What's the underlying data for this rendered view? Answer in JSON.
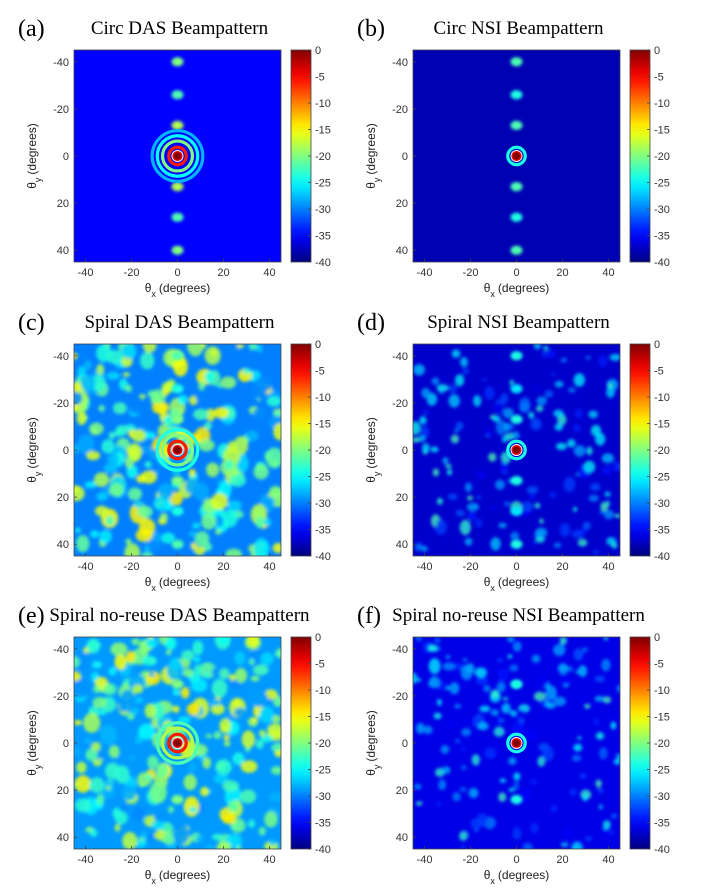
{
  "chart_data": [
    {
      "type": "heatmap",
      "panel": "(a)",
      "title": "Circ DAS Beampattern",
      "array": "circ",
      "method": "DAS",
      "xlabel": {
        "symbol": "θ",
        "sub": "x",
        "unit": "(degrees)"
      },
      "ylabel": {
        "symbol": "θ",
        "sub": "y",
        "unit": "(degrees)"
      },
      "xlim": [
        -45,
        45
      ],
      "ylim": [
        -45,
        45
      ],
      "xticks": [
        -40,
        -20,
        0,
        20,
        40
      ],
      "yticks": [
        -40,
        -20,
        0,
        20,
        40
      ],
      "colorbar": {
        "range": [
          -40,
          0
        ],
        "ticks": [
          0,
          -5,
          -10,
          -15,
          -20,
          -25,
          -30,
          -35,
          -40
        ],
        "colormap": "jet"
      },
      "background_level": -35,
      "mainlobe": {
        "x": 0,
        "y": 0,
        "level": 0
      },
      "rings": [
        {
          "radius": 3.8,
          "level": -6
        },
        {
          "radius": 6.5,
          "level": -20
        },
        {
          "radius": 8.8,
          "level": -25
        },
        {
          "radius": 11,
          "level": -28
        }
      ],
      "grating_lobes": [
        {
          "x": 0,
          "y": -40,
          "level": -20
        },
        {
          "x": 0,
          "y": -26,
          "level": -22
        },
        {
          "x": 0,
          "y": -13,
          "level": -18
        },
        {
          "x": 0,
          "y": 13,
          "level": -18
        },
        {
          "x": 0,
          "y": 26,
          "level": -22
        },
        {
          "x": 0,
          "y": 40,
          "level": -20
        }
      ],
      "clutter": "low"
    },
    {
      "type": "heatmap",
      "panel": "(b)",
      "title": "Circ NSI Beampattern",
      "array": "circ",
      "method": "NSI",
      "xlabel": {
        "symbol": "θ",
        "sub": "x",
        "unit": "(degrees)"
      },
      "ylabel": {
        "symbol": "θ",
        "sub": "y",
        "unit": "(degrees)"
      },
      "xlim": [
        -45,
        45
      ],
      "ylim": [
        -45,
        45
      ],
      "xticks": [
        -40,
        -20,
        0,
        20,
        40
      ],
      "yticks": [
        -40,
        -20,
        0,
        20,
        40
      ],
      "colorbar": {
        "range": [
          -40,
          0
        ],
        "ticks": [
          0,
          -5,
          -10,
          -15,
          -20,
          -25,
          -30,
          -35,
          -40
        ],
        "colormap": "jet"
      },
      "background_level": -38,
      "mainlobe": {
        "x": 0,
        "y": 0,
        "level": 0
      },
      "rings": [
        {
          "radius": 3.8,
          "level": -24
        }
      ],
      "grating_lobes": [
        {
          "x": 0,
          "y": -40,
          "level": -22
        },
        {
          "x": 0,
          "y": -26,
          "level": -24
        },
        {
          "x": 0,
          "y": -13,
          "level": -22
        },
        {
          "x": 0,
          "y": 13,
          "level": -22
        },
        {
          "x": 0,
          "y": 26,
          "level": -24
        },
        {
          "x": 0,
          "y": 40,
          "level": -22
        }
      ],
      "clutter": "none"
    },
    {
      "type": "heatmap",
      "panel": "(c)",
      "title": "Spiral DAS Beampattern",
      "array": "spiral",
      "method": "DAS",
      "xlabel": {
        "symbol": "θ",
        "sub": "x",
        "unit": "(degrees)"
      },
      "ylabel": {
        "symbol": "θ",
        "sub": "y",
        "unit": "(degrees)"
      },
      "xlim": [
        -45,
        45
      ],
      "ylim": [
        -45,
        45
      ],
      "xticks": [
        -40,
        -20,
        0,
        20,
        40
      ],
      "yticks": [
        -40,
        -20,
        0,
        20,
        40
      ],
      "colorbar": {
        "range": [
          -40,
          0
        ],
        "ticks": [
          0,
          -5,
          -10,
          -15,
          -20,
          -25,
          -30,
          -35,
          -40
        ],
        "colormap": "jet"
      },
      "background_level": -30,
      "mainlobe": {
        "x": 0,
        "y": 0,
        "level": 0
      },
      "rings": [
        {
          "radius": 3.8,
          "level": -6
        },
        {
          "radius": 6.5,
          "level": -20
        },
        {
          "radius": 8.8,
          "level": -24
        }
      ],
      "grating_lobes": [
        {
          "x": 0,
          "y": -40,
          "level": -22
        },
        {
          "x": 0,
          "y": -26,
          "level": -24
        },
        {
          "x": 0,
          "y": -13,
          "level": -20
        },
        {
          "x": 0,
          "y": 13,
          "level": -20
        },
        {
          "x": 0,
          "y": 26,
          "level": -24
        },
        {
          "x": 0,
          "y": 40,
          "level": -22
        }
      ],
      "clutter": "high"
    },
    {
      "type": "heatmap",
      "panel": "(d)",
      "title": "Spiral NSI Beampattern",
      "array": "spiral",
      "method": "NSI",
      "xlabel": {
        "symbol": "θ",
        "sub": "x",
        "unit": "(degrees)"
      },
      "ylabel": {
        "symbol": "θ",
        "sub": "y",
        "unit": "(degrees)"
      },
      "xlim": [
        -45,
        45
      ],
      "ylim": [
        -45,
        45
      ],
      "xticks": [
        -40,
        -20,
        0,
        20,
        40
      ],
      "yticks": [
        -40,
        -20,
        0,
        20,
        40
      ],
      "colorbar": {
        "range": [
          -40,
          0
        ],
        "ticks": [
          0,
          -5,
          -10,
          -15,
          -20,
          -25,
          -30,
          -35,
          -40
        ],
        "colormap": "jet"
      },
      "background_level": -37,
      "mainlobe": {
        "x": 0,
        "y": 0,
        "level": 0
      },
      "rings": [
        {
          "radius": 3.8,
          "level": -24
        }
      ],
      "grating_lobes": [
        {
          "x": 0,
          "y": -40,
          "level": -24
        },
        {
          "x": 0,
          "y": -26,
          "level": -26
        },
        {
          "x": 0,
          "y": -13,
          "level": -24
        },
        {
          "x": 0,
          "y": 13,
          "level": -24
        },
        {
          "x": 0,
          "y": 26,
          "level": -26
        },
        {
          "x": 0,
          "y": 40,
          "level": -24
        }
      ],
      "clutter": "medium"
    },
    {
      "type": "heatmap",
      "panel": "(e)",
      "title": "Spiral no-reuse DAS Beampattern",
      "array": "spiral no-reuse",
      "method": "DAS",
      "xlabel": {
        "symbol": "θ",
        "sub": "x",
        "unit": "(degrees)"
      },
      "ylabel": {
        "symbol": "θ",
        "sub": "y",
        "unit": "(degrees)"
      },
      "xlim": [
        -45,
        45
      ],
      "ylim": [
        -45,
        45
      ],
      "xticks": [
        -40,
        -20,
        0,
        20,
        40
      ],
      "yticks": [
        -40,
        -20,
        0,
        20,
        40
      ],
      "colorbar": {
        "range": [
          -40,
          0
        ],
        "ticks": [
          0,
          -5,
          -10,
          -15,
          -20,
          -25,
          -30,
          -35,
          -40
        ],
        "colormap": "jet"
      },
      "background_level": -29,
      "mainlobe": {
        "x": 0,
        "y": 0,
        "level": 0
      },
      "rings": [
        {
          "radius": 3.8,
          "level": -6
        },
        {
          "radius": 6.5,
          "level": -18
        },
        {
          "radius": 8.8,
          "level": -22
        }
      ],
      "grating_lobes": [
        {
          "x": 0,
          "y": -25,
          "level": -20
        },
        {
          "x": 0,
          "y": 24,
          "level": -20
        }
      ],
      "clutter": "high"
    },
    {
      "type": "heatmap",
      "panel": "(f)",
      "title": "Spiral no-reuse NSI Beampattern",
      "array": "spiral no-reuse",
      "method": "NSI",
      "xlabel": {
        "symbol": "θ",
        "sub": "x",
        "unit": "(degrees)"
      },
      "ylabel": {
        "symbol": "θ",
        "sub": "y",
        "unit": "(degrees)"
      },
      "xlim": [
        -45,
        45
      ],
      "ylim": [
        -45,
        45
      ],
      "xticks": [
        -40,
        -20,
        0,
        20,
        40
      ],
      "yticks": [
        -40,
        -20,
        0,
        20,
        40
      ],
      "colorbar": {
        "range": [
          -40,
          0
        ],
        "ticks": [
          0,
          -5,
          -10,
          -15,
          -20,
          -25,
          -30,
          -35,
          -40
        ],
        "colormap": "jet"
      },
      "background_level": -36,
      "mainlobe": {
        "x": 0,
        "y": 0,
        "level": 0
      },
      "rings": [
        {
          "radius": 3.8,
          "level": -24
        }
      ],
      "grating_lobes": [
        {
          "x": 0,
          "y": -25,
          "level": -24
        },
        {
          "x": 0,
          "y": 24,
          "level": -24
        }
      ],
      "clutter": "medium"
    }
  ]
}
